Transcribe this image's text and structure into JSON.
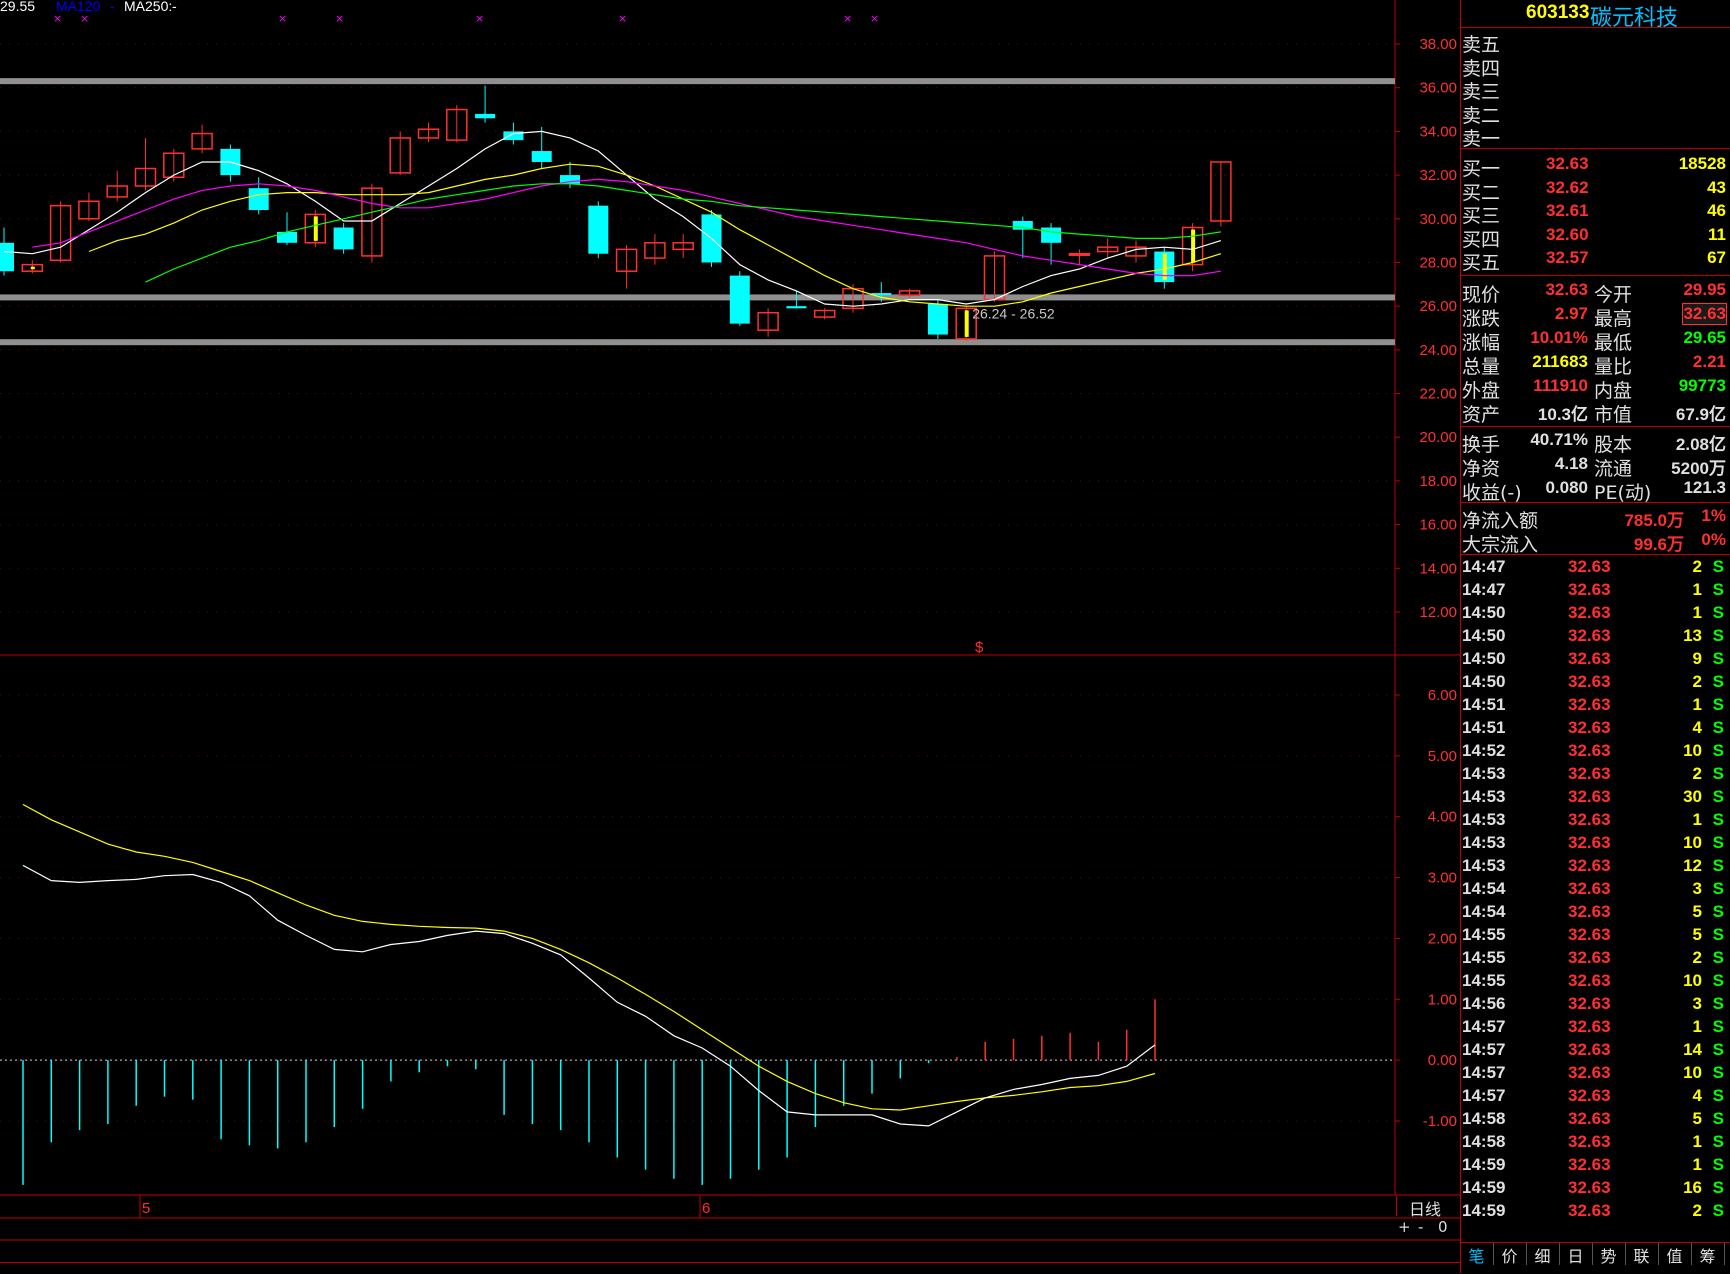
{
  "legend": {
    "ma_price": "29.55",
    "ma120_label": "MA120",
    "ma120_value": "-",
    "ma250_label": "MA250:",
    "ma250_value": "-"
  },
  "stock": {
    "code": "603133",
    "name": "碳元科技"
  },
  "sell": [
    {
      "label": "卖五"
    },
    {
      "label": "卖四"
    },
    {
      "label": "卖三"
    },
    {
      "label": "卖二"
    },
    {
      "label": "卖一"
    }
  ],
  "buy": [
    {
      "label": "买一",
      "price": "32.63",
      "vol": "18528"
    },
    {
      "label": "买二",
      "price": "32.62",
      "vol": "43"
    },
    {
      "label": "买三",
      "price": "32.61",
      "vol": "46"
    },
    {
      "label": "买四",
      "price": "32.60",
      "vol": "11"
    },
    {
      "label": "买五",
      "price": "32.57",
      "vol": "67"
    }
  ],
  "quote": [
    {
      "l1": "现价",
      "v1": "32.63",
      "l2": "今开",
      "v2": "29.95"
    },
    {
      "l1": "涨跌",
      "v1": "2.97",
      "l2": "最高",
      "v2": "32.63"
    },
    {
      "l1": "涨幅",
      "v1": "10.01%",
      "l2": "最低",
      "v2": "29.65"
    },
    {
      "l1": "总量",
      "v1": "211683",
      "l2": "量比",
      "v2": "2.21"
    },
    {
      "l1": "外盘",
      "v1": "111910",
      "l2": "内盘",
      "v2": "99773"
    },
    {
      "l1": "资产",
      "v1": "10.3亿",
      "l2": "市值",
      "v2": "67.9亿"
    }
  ],
  "finance": [
    {
      "l1": "换手",
      "v1": "40.71%",
      "l2": "股本",
      "v2": "2.08亿"
    },
    {
      "l1": "净资",
      "v1": "4.18",
      "l2": "流通",
      "v2": "5200万"
    },
    {
      "l1": "收益(-)",
      "v1": "0.080",
      "l2": "PE(动)",
      "v2": "121.3"
    }
  ],
  "flow": [
    {
      "l": "净流入额",
      "v": "785.0万",
      "p": "1%"
    },
    {
      "l": "大宗流入",
      "v": "99.6万",
      "p": "0%"
    }
  ],
  "ticks": [
    {
      "t": "14:47",
      "p": "32.63",
      "v": "2",
      "s": "S"
    },
    {
      "t": "14:47",
      "p": "32.63",
      "v": "1",
      "s": "S"
    },
    {
      "t": "14:50",
      "p": "32.63",
      "v": "1",
      "s": "S"
    },
    {
      "t": "14:50",
      "p": "32.63",
      "v": "13",
      "s": "S"
    },
    {
      "t": "14:50",
      "p": "32.63",
      "v": "9",
      "s": "S"
    },
    {
      "t": "14:50",
      "p": "32.63",
      "v": "2",
      "s": "S"
    },
    {
      "t": "14:51",
      "p": "32.63",
      "v": "1",
      "s": "S"
    },
    {
      "t": "14:51",
      "p": "32.63",
      "v": "4",
      "s": "S"
    },
    {
      "t": "14:52",
      "p": "32.63",
      "v": "10",
      "s": "S"
    },
    {
      "t": "14:53",
      "p": "32.63",
      "v": "2",
      "s": "S"
    },
    {
      "t": "14:53",
      "p": "32.63",
      "v": "30",
      "s": "S"
    },
    {
      "t": "14:53",
      "p": "32.63",
      "v": "1",
      "s": "S"
    },
    {
      "t": "14:53",
      "p": "32.63",
      "v": "10",
      "s": "S"
    },
    {
      "t": "14:53",
      "p": "32.63",
      "v": "12",
      "s": "S"
    },
    {
      "t": "14:54",
      "p": "32.63",
      "v": "3",
      "s": "S"
    },
    {
      "t": "14:54",
      "p": "32.63",
      "v": "5",
      "s": "S"
    },
    {
      "t": "14:55",
      "p": "32.63",
      "v": "5",
      "s": "S"
    },
    {
      "t": "14:55",
      "p": "32.63",
      "v": "2",
      "s": "S"
    },
    {
      "t": "14:55",
      "p": "32.63",
      "v": "10",
      "s": "S"
    },
    {
      "t": "14:56",
      "p": "32.63",
      "v": "3",
      "s": "S"
    },
    {
      "t": "14:57",
      "p": "32.63",
      "v": "1",
      "s": "S"
    },
    {
      "t": "14:57",
      "p": "32.63",
      "v": "14",
      "s": "S"
    },
    {
      "t": "14:57",
      "p": "32.63",
      "v": "10",
      "s": "S"
    },
    {
      "t": "14:57",
      "p": "32.63",
      "v": "4",
      "s": "S"
    },
    {
      "t": "14:58",
      "p": "32.63",
      "v": "5",
      "s": "S"
    },
    {
      "t": "14:58",
      "p": "32.63",
      "v": "1",
      "s": "S"
    },
    {
      "t": "14:59",
      "p": "32.63",
      "v": "1",
      "s": "S"
    },
    {
      "t": "14:59",
      "p": "32.63",
      "v": "16",
      "s": "S"
    },
    {
      "t": "14:59",
      "p": "32.63",
      "v": "2",
      "s": "S"
    }
  ],
  "tabs": [
    "笔",
    "价",
    "细",
    "日",
    "势",
    "联",
    "值",
    "筹"
  ],
  "period_label": "日线",
  "zoom_controls": [
    "+",
    "-",
    "0"
  ],
  "annotation": {
    "range_text": "26.24 - 26.52",
    "marker": "$"
  },
  "month_labels": [
    {
      "label": "5"
    },
    {
      "label": "6"
    }
  ],
  "colors": {
    "up": "#ff3030",
    "down": "#00ffff",
    "ma5": "#ffffff",
    "ma10": "#ffff00",
    "ma20": "#ff00ff",
    "ma60": "#00ff00",
    "frame": "#c00000"
  },
  "chart_data": [
    {
      "type": "candlestick",
      "title": "",
      "y_ticks": [
        "38.00",
        "36.00",
        "34.00",
        "32.00",
        "30.00",
        "28.00",
        "26.00",
        "24.00",
        "22.00",
        "20.00",
        "18.00",
        "16.00",
        "14.00",
        "12.00"
      ],
      "ylim": [
        11,
        40
      ],
      "support_lines": [
        36.3,
        26.4,
        24.35
      ],
      "candles": [
        {
          "o": 28.9,
          "c": 27.6,
          "h": 29.6,
          "l": 27.4
        },
        {
          "o": 27.6,
          "c": 27.9,
          "h": 28.1,
          "l": 27.5
        },
        {
          "o": 28.1,
          "c": 30.6,
          "h": 30.8,
          "l": 28.0
        },
        {
          "o": 30.0,
          "c": 30.8,
          "h": 31.2,
          "l": 29.9
        },
        {
          "o": 31.0,
          "c": 31.5,
          "h": 32.2,
          "l": 30.8
        },
        {
          "o": 31.5,
          "c": 32.3,
          "h": 33.7,
          "l": 31.3
        },
        {
          "o": 31.9,
          "c": 33.0,
          "h": 33.2,
          "l": 31.7
        },
        {
          "o": 33.2,
          "c": 33.9,
          "h": 34.3,
          "l": 33.0
        },
        {
          "o": 33.2,
          "c": 32.0,
          "h": 33.4,
          "l": 31.7
        },
        {
          "o": 31.4,
          "c": 30.4,
          "h": 31.9,
          "l": 30.2
        },
        {
          "o": 29.4,
          "c": 28.9,
          "h": 30.3,
          "l": 28.8
        },
        {
          "o": 28.9,
          "c": 30.2,
          "h": 30.4,
          "l": 28.7
        },
        {
          "o": 29.6,
          "c": 28.6,
          "h": 29.8,
          "l": 28.4
        },
        {
          "o": 28.3,
          "c": 31.4,
          "h": 31.6,
          "l": 28.0
        },
        {
          "o": 32.1,
          "c": 33.7,
          "h": 34.0,
          "l": 32.0
        },
        {
          "o": 33.7,
          "c": 34.1,
          "h": 34.4,
          "l": 33.5
        },
        {
          "o": 33.6,
          "c": 35.0,
          "h": 35.2,
          "l": 33.5
        },
        {
          "o": 34.8,
          "c": 34.6,
          "h": 36.1,
          "l": 34.4
        },
        {
          "o": 34.0,
          "c": 33.6,
          "h": 34.4,
          "l": 33.4
        },
        {
          "o": 33.1,
          "c": 32.6,
          "h": 34.2,
          "l": 32.3
        },
        {
          "o": 32.0,
          "c": 31.6,
          "h": 32.6,
          "l": 31.4
        },
        {
          "o": 30.6,
          "c": 28.4,
          "h": 30.8,
          "l": 28.2
        },
        {
          "o": 27.6,
          "c": 28.6,
          "h": 28.8,
          "l": 26.8
        },
        {
          "o": 28.2,
          "c": 28.9,
          "h": 29.3,
          "l": 27.9
        },
        {
          "o": 28.6,
          "c": 28.9,
          "h": 29.3,
          "l": 28.2
        },
        {
          "o": 30.2,
          "c": 28.0,
          "h": 30.4,
          "l": 27.8
        },
        {
          "o": 27.4,
          "c": 25.2,
          "h": 27.6,
          "l": 25.1
        },
        {
          "o": 24.9,
          "c": 25.7,
          "h": 25.9,
          "l": 24.6
        },
        {
          "o": 26.0,
          "c": 25.9,
          "h": 26.7,
          "l": 25.9
        },
        {
          "o": 25.5,
          "c": 25.8,
          "h": 25.9,
          "l": 25.4
        },
        {
          "o": 25.9,
          "c": 26.8,
          "h": 27.0,
          "l": 25.7
        },
        {
          "o": 26.6,
          "c": 26.5,
          "h": 27.1,
          "l": 26.2
        },
        {
          "o": 26.5,
          "c": 26.7,
          "h": 26.8,
          "l": 26.4
        },
        {
          "o": 26.1,
          "c": 24.7,
          "h": 26.3,
          "l": 24.5
        },
        {
          "o": 24.5,
          "c": 25.9,
          "h": 26.0,
          "l": 24.4
        },
        {
          "o": 26.3,
          "c": 28.3,
          "h": 28.5,
          "l": 26.2
        },
        {
          "o": 29.9,
          "c": 29.5,
          "h": 30.1,
          "l": 28.2
        },
        {
          "o": 29.6,
          "c": 28.9,
          "h": 29.8,
          "l": 27.9
        },
        {
          "o": 28.4,
          "c": 28.4,
          "h": 28.6,
          "l": 27.9
        },
        {
          "o": 28.5,
          "c": 28.7,
          "h": 29.1,
          "l": 28.2
        },
        {
          "o": 28.3,
          "c": 28.7,
          "h": 29.0,
          "l": 28.0
        },
        {
          "o": 28.5,
          "c": 27.1,
          "h": 28.7,
          "l": 26.8
        },
        {
          "o": 27.9,
          "c": 29.6,
          "h": 29.8,
          "l": 27.6
        },
        {
          "o": 29.9,
          "c": 32.6,
          "h": 32.6,
          "l": 29.65
        }
      ],
      "yellow_marked_candles": [
        1,
        11,
        34,
        41,
        42
      ],
      "ma": [
        {
          "name": "ma5",
          "color": "#ffffff",
          "values": [
            28.5,
            28.4,
            28.7,
            29.5,
            30.3,
            31.2,
            32.0,
            32.6,
            32.6,
            32.2,
            31.6,
            30.8,
            29.9,
            29.9,
            30.7,
            31.5,
            32.3,
            33.2,
            33.9,
            34.0,
            33.7,
            33.1,
            32.0,
            30.9,
            30.1,
            29.1,
            27.9,
            27.2,
            26.7,
            26.1,
            26.0,
            26.1,
            26.3,
            26.3,
            26.1,
            26.3,
            26.9,
            27.4,
            27.7,
            28.2,
            28.6,
            28.7,
            28.6,
            29.0
          ]
        },
        {
          "name": "ma10",
          "color": "#ffff00",
          "values": [
            null,
            null,
            null,
            28.5,
            29.0,
            29.3,
            29.8,
            30.4,
            30.8,
            31.1,
            31.2,
            31.2,
            31.1,
            31.1,
            31.1,
            31.2,
            31.5,
            31.8,
            32.0,
            32.3,
            32.5,
            32.4,
            32.0,
            31.5,
            30.9,
            30.3,
            29.5,
            28.8,
            28.1,
            27.4,
            26.8,
            26.4,
            26.2,
            26.1,
            26.0,
            26.0,
            26.2,
            26.6,
            26.9,
            27.2,
            27.5,
            27.7,
            28.0,
            28.4
          ]
        },
        {
          "name": "ma20",
          "color": "#ff00ff",
          "values": [
            null,
            28.7,
            28.9,
            29.4,
            29.9,
            30.4,
            30.9,
            31.3,
            31.5,
            31.6,
            31.5,
            31.3,
            31.0,
            30.7,
            30.5,
            30.5,
            30.7,
            30.9,
            31.2,
            31.5,
            31.7,
            31.8,
            31.7,
            31.5,
            31.3,
            31.0,
            30.7,
            30.4,
            30.1,
            29.9,
            29.7,
            29.5,
            29.3,
            29.1,
            28.9,
            28.6,
            28.3,
            28.1,
            27.9,
            27.7,
            27.5,
            27.4,
            27.4,
            27.6
          ]
        },
        {
          "name": "ma60",
          "color": "#00ff00",
          "values": [
            null,
            null,
            null,
            null,
            null,
            27.1,
            27.7,
            28.2,
            28.7,
            29.0,
            29.4,
            29.7,
            30.0,
            30.3,
            30.6,
            30.9,
            31.1,
            31.3,
            31.5,
            31.6,
            31.6,
            31.5,
            31.3,
            31.1,
            30.9,
            30.8,
            30.6,
            30.5,
            30.4,
            30.3,
            30.2,
            30.1,
            30.0,
            29.9,
            29.8,
            29.7,
            29.6,
            29.4,
            29.3,
            29.2,
            29.1,
            29.1,
            29.2,
            29.4
          ]
        }
      ]
    },
    {
      "type": "macd",
      "title": "",
      "y_ticks": [
        "6.00",
        "5.00",
        "4.00",
        "3.00",
        "2.00",
        "1.00",
        "0.00",
        "-1.00"
      ],
      "ylim": [
        -2.2,
        6.8
      ],
      "hist": [
        -2.05,
        -1.35,
        -1.15,
        -1.05,
        -0.75,
        -0.6,
        -0.65,
        -1.3,
        -1.4,
        -1.45,
        -1.35,
        -1.1,
        -0.8,
        -0.35,
        -0.2,
        -0.1,
        -0.15,
        -0.9,
        -1.05,
        -1.15,
        -1.35,
        -1.6,
        -1.8,
        -1.95,
        -2.05,
        -1.95,
        -1.8,
        -1.6,
        -1.1,
        -0.75,
        -0.55,
        -0.3,
        -0.05,
        0.05,
        0.3,
        0.35,
        0.4,
        0.45,
        0.3,
        0.5,
        1.0
      ],
      "dif": [
        3.2,
        2.95,
        2.92,
        2.95,
        2.97,
        3.03,
        3.05,
        2.92,
        2.7,
        2.3,
        2.05,
        1.82,
        1.78,
        1.9,
        1.95,
        2.05,
        2.12,
        2.08,
        1.92,
        1.73,
        1.35,
        0.95,
        0.72,
        0.4,
        0.2,
        -0.1,
        -0.5,
        -0.85,
        -0.9,
        -0.9,
        -0.9,
        -1.05,
        -1.08,
        -0.85,
        -0.62,
        -0.48,
        -0.4,
        -0.3,
        -0.25,
        -0.1,
        0.25
      ],
      "dea": [
        4.2,
        3.95,
        3.75,
        3.55,
        3.42,
        3.35,
        3.25,
        3.1,
        2.95,
        2.75,
        2.55,
        2.38,
        2.28,
        2.23,
        2.2,
        2.18,
        2.17,
        2.12,
        2.0,
        1.82,
        1.6,
        1.35,
        1.08,
        0.8,
        0.5,
        0.2,
        -0.1,
        -0.35,
        -0.55,
        -0.7,
        -0.8,
        -0.82,
        -0.75,
        -0.68,
        -0.62,
        -0.58,
        -0.52,
        -0.45,
        -0.42,
        -0.35,
        -0.22
      ]
    }
  ]
}
